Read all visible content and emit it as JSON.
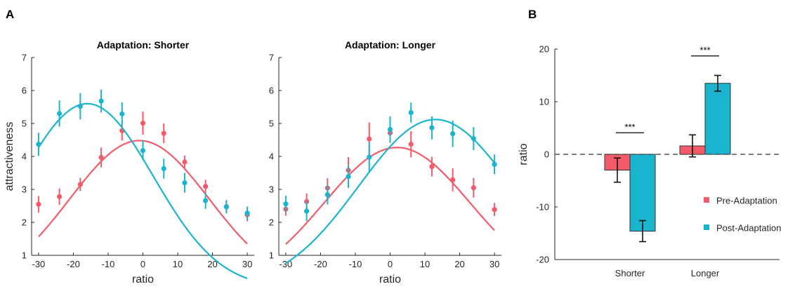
{
  "panel_letters": {
    "A": "A",
    "B": "B"
  },
  "colors": {
    "pre": "#f45b69",
    "post": "#1ab4cf",
    "axis": "#262626"
  },
  "chart_data": [
    {
      "type": "scatter",
      "title": "Adaptation: Shorter",
      "xlabel": "ratio",
      "ylabel": "attractiveness",
      "xlim": [
        -32,
        32
      ],
      "ylim": [
        1,
        7
      ],
      "xticks": [
        -30,
        -20,
        -10,
        0,
        10,
        20,
        30
      ],
      "yticks": [
        1,
        2,
        3,
        4,
        5,
        6,
        7
      ],
      "x": [
        -30,
        -24,
        -18,
        -12,
        -6,
        0,
        6,
        12,
        18,
        24,
        30
      ],
      "series": [
        {
          "key": "pre",
          "values": [
            2.55,
            2.78,
            3.15,
            3.97,
            4.78,
            5.01,
            4.7,
            3.83,
            3.09,
            2.48,
            2.23
          ],
          "errors": [
            0.25,
            0.25,
            0.2,
            0.3,
            0.3,
            0.35,
            0.3,
            0.2,
            0.2,
            0.2,
            0.2
          ],
          "fit": {
            "peak": 4.48,
            "mu": -1,
            "sigma": 20,
            "floor": 0
          }
        },
        {
          "key": "post",
          "values": [
            4.37,
            5.3,
            5.52,
            5.68,
            5.29,
            4.18,
            3.63,
            3.2,
            2.66,
            2.47,
            2.28
          ],
          "errors": [
            0.35,
            0.4,
            0.4,
            0.35,
            0.35,
            0.3,
            0.3,
            0.3,
            0.25,
            0.2,
            0.2
          ],
          "fit": {
            "peak": 5.6,
            "mu": -16,
            "sigma": 19,
            "floor": 0
          }
        }
      ]
    },
    {
      "type": "scatter",
      "title": "Adaptation: Longer",
      "xlabel": "ratio",
      "ylabel": "",
      "xlim": [
        -32,
        32
      ],
      "ylim": [
        1,
        7
      ],
      "xticks": [
        -30,
        -20,
        -10,
        0,
        10,
        20,
        30
      ],
      "yticks": [
        1,
        2,
        3,
        4,
        5,
        6,
        7
      ],
      "x": [
        -30,
        -24,
        -18,
        -12,
        -6,
        0,
        6,
        12,
        18,
        24,
        30
      ],
      "series": [
        {
          "key": "pre",
          "values": [
            2.4,
            2.63,
            3.04,
            3.58,
            4.53,
            4.71,
            4.37,
            3.69,
            3.29,
            3.05,
            2.39
          ],
          "errors": [
            0.2,
            0.25,
            0.3,
            0.4,
            0.5,
            0.3,
            0.4,
            0.3,
            0.35,
            0.3,
            0.2
          ],
          "fit": {
            "peak": 4.27,
            "mu": 2,
            "sigma": 21,
            "floor": 0
          }
        },
        {
          "key": "post",
          "values": [
            2.56,
            2.34,
            2.84,
            3.39,
            3.98,
            4.82,
            5.33,
            4.87,
            4.69,
            4.54,
            3.76
          ],
          "errors": [
            0.25,
            0.3,
            0.3,
            0.35,
            0.45,
            0.4,
            0.3,
            0.35,
            0.4,
            0.35,
            0.3
          ],
          "fit": {
            "peak": 5.12,
            "mu": 13,
            "sigma": 22,
            "floor": 0
          }
        }
      ]
    },
    {
      "type": "bar",
      "title": "",
      "xlabel": "",
      "ylabel": "ratio",
      "ylim": [
        -20,
        20
      ],
      "yticks": [
        20,
        10,
        0,
        -10,
        -20
      ],
      "categories": [
        "Shorter",
        "Longer"
      ],
      "series": [
        {
          "key": "pre",
          "name": "Pre-Adaptation",
          "values": [
            -3.0,
            1.6
          ],
          "errors": [
            2.3,
            2.1
          ]
        },
        {
          "key": "post",
          "name": "Post-Adaptation",
          "values": [
            -14.6,
            13.5
          ],
          "errors": [
            2.0,
            1.5
          ]
        }
      ],
      "significance": [
        "***",
        "***"
      ],
      "legend_position": "center-right"
    }
  ]
}
